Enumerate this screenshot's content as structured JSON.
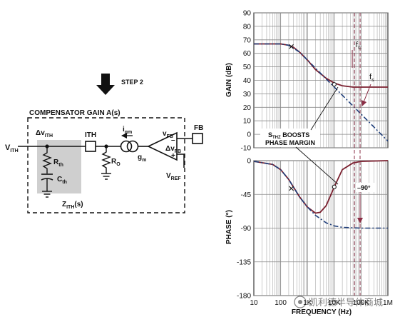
{
  "schematic": {
    "step_label": "STEP 2",
    "box_title": "COMPENSATOR GAIN A(s)",
    "v_ith": "V",
    "v_ith_sub": "ITH",
    "delta_v_ith": "Δv",
    "delta_v_ith_sub": "ITH",
    "ith_pin": "ITH",
    "igm": "i",
    "igm_sub": "gm",
    "gm": "g",
    "gm_sub": "m",
    "vfb": "v",
    "vfb_sub": "FB",
    "delta_vfb": "Δv",
    "delta_vfb_sub": "FB",
    "fb_pin": "FB",
    "rth": "R",
    "rth_sub": "th",
    "cth": "C",
    "cth_sub": "th",
    "ro": "R",
    "ro_sub": "O",
    "vref": "V",
    "vref_sub": "REF",
    "zith": "Z",
    "zith_sub": "ITH",
    "zith_suffix": "(s)",
    "minus": "–",
    "plus": "+"
  },
  "annotations": {
    "fc": "f",
    "fc_sub": "C",
    "fs": "f",
    "fs_sub": "s",
    "sthz_line1_pre": "S",
    "sthz_line1_sub": "THZ",
    "sthz_line1_post": " BOOSTS",
    "sthz_line2": "PHASE MARGIN",
    "minus90": "–90°"
  },
  "watermark": "凯利德半导体商城",
  "chart_data": [
    {
      "type": "line",
      "xlabel": "FREQUENCY (Hz)",
      "ylabel": "GAIN (dB)",
      "xscale": "log",
      "xlim": [
        10,
        1000000
      ],
      "ylim": [
        -10,
        90
      ],
      "x_ticks": [
        "10",
        "100",
        "1K",
        "10K",
        "100K",
        "1M"
      ],
      "y_ticks": [
        "90",
        "80",
        "70",
        "60",
        "50",
        "40",
        "30",
        "20",
        "10",
        "0",
        "-10"
      ],
      "grid": true,
      "series": [
        {
          "style": "solid",
          "color": "#7a1f2e",
          "x": [
            10,
            100,
            200,
            300,
            500,
            1000,
            2000,
            5000,
            10000,
            20000,
            50000,
            100000,
            1000000
          ],
          "y": [
            67,
            67,
            66,
            64.5,
            61,
            55,
            48,
            41.5,
            38,
            36,
            35,
            35,
            35
          ]
        },
        {
          "style": "dashed",
          "color": "#1f3e7a",
          "x": [
            10,
            100,
            200,
            500,
            1000,
            10000,
            100000,
            1000000
          ],
          "y": [
            67,
            67,
            66,
            61,
            55,
            35,
            15,
            -5
          ]
        }
      ],
      "markers": [
        {
          "x": 250,
          "y": 65
        },
        {
          "x": 10000,
          "y": 37
        }
      ],
      "vlines": [
        {
          "x": 50000,
          "style": "dashed",
          "label": "fc"
        },
        {
          "x": 70000,
          "style": "dashed",
          "label": "fs"
        }
      ]
    },
    {
      "type": "line",
      "xlabel": "FREQUENCY (Hz)",
      "ylabel": "PHASE (°)",
      "xscale": "log",
      "xlim": [
        10,
        1000000
      ],
      "ylim": [
        -180,
        0
      ],
      "x_ticks": [
        "10",
        "100",
        "1K",
        "10K",
        "100K",
        "1M"
      ],
      "y_ticks": [
        "0",
        "-45",
        "-90",
        "-135",
        "-180"
      ],
      "grid": true,
      "series": [
        {
          "style": "solid",
          "color": "#7a1f2e",
          "x": [
            10,
            50,
            100,
            200,
            500,
            1000,
            2000,
            3000,
            5000,
            10000,
            20000,
            50000,
            100000,
            1000000
          ],
          "y": [
            -1,
            -5,
            -12,
            -25,
            -48,
            -62,
            -70,
            -69,
            -60,
            -35,
            -12,
            -3,
            -1,
            0
          ]
        },
        {
          "style": "dashed",
          "color": "#1f3e7a",
          "x": [
            10,
            50,
            100,
            200,
            500,
            1000,
            2000,
            5000,
            10000,
            20000,
            100000,
            1000000
          ],
          "y": [
            -1,
            -5,
            -12,
            -25,
            -48,
            -62,
            -73,
            -83,
            -87,
            -89,
            -90,
            -90
          ]
        }
      ],
      "markers": [
        {
          "x": 250,
          "y": -37
        },
        {
          "x": 10000,
          "y": -35
        }
      ]
    }
  ]
}
